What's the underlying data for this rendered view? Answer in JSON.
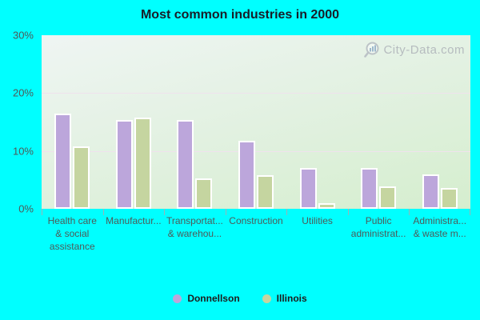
{
  "title": "Most common industries in 2000",
  "watermark": {
    "text": "City-Data.com",
    "icon": "magnifier-chart-icon"
  },
  "colors": {
    "background": "#00FFFF",
    "plot_top": "#EFF5F3",
    "plot_mid": "#E2F1E1",
    "plot_bottom": "#D5EECE",
    "gridline": "#EFE2ED",
    "tick": "#9DB2B4",
    "donnellson": "#BCA6DB",
    "illinois": "#C5D5A0",
    "bar_border": "#FFFFFF",
    "title_text": "#181D28",
    "axis_text": "#4E5A58",
    "legend_text": "#1C1C1C",
    "watermark_text": "#B6BCBF"
  },
  "chart_data": {
    "type": "bar",
    "title": "Most common industries in 2000",
    "categories": [
      "Health care\n& social\nassistance",
      "Manufactur...",
      "Transportat...\n& warehou...",
      "Construction",
      "Utilities",
      "Public\nadministrat...",
      "Administra...\n& waste m..."
    ],
    "series": [
      {
        "name": "Donnellson",
        "color": "#BCA6DB",
        "values": [
          16.4,
          15.3,
          15.3,
          11.8,
          7.1,
          7.0,
          6.0
        ]
      },
      {
        "name": "Illinois",
        "color": "#C5D5A0",
        "values": [
          10.8,
          15.8,
          5.2,
          5.8,
          1.0,
          3.9,
          3.6
        ]
      }
    ],
    "xlabel": "",
    "ylabel": "",
    "y_ticks": [
      "30%",
      "20%",
      "10%",
      "0%"
    ],
    "ylim": [
      0,
      30
    ],
    "grid": true,
    "legend_position": "bottom"
  },
  "legend": {
    "items": [
      {
        "label": "Donnellson",
        "color": "#BCA6DB"
      },
      {
        "label": "Illinois",
        "color": "#C5D5A0"
      }
    ]
  }
}
